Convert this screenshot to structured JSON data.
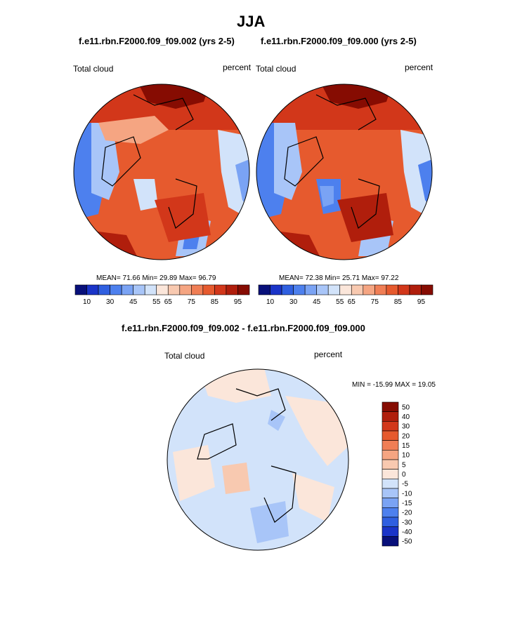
{
  "page": {
    "title": "JJA",
    "difference_title": "f.e11.rbn.F2000.f09_f09.002 - f.e11.rbn.F2000.f09_f09.000"
  },
  "panels": [
    {
      "title": "f.e11.rbn.F2000.f09_f09.002 (yrs 2-5)",
      "variable": "Total cloud",
      "units": "percent",
      "stats": "MEAN=  71.66  Min=  29.89  Max=  96.79",
      "mean": 71.66,
      "min": 29.89,
      "max": 96.79
    },
    {
      "title": "f.e11.rbn.F2000.f09_f09.000 (yrs 2-5)",
      "variable": "Total cloud",
      "units": "percent",
      "stats": "MEAN=  72.38  Min=  25.71  Max=  97.22",
      "mean": 72.38,
      "min": 25.71,
      "max": 97.22
    }
  ],
  "difference": {
    "variable": "Total cloud",
    "units": "percent",
    "stats": "MIN = -15.99 MAX =  19.05",
    "min": -15.99,
    "max": 19.05
  },
  "colorbar_abs": {
    "colors": [
      "#08107a",
      "#1a34c8",
      "#2f5fe0",
      "#4d80ee",
      "#7aa3f4",
      "#a8c5f8",
      "#d2e3fa",
      "#fbe6da",
      "#f8c9b0",
      "#f5a582",
      "#f07e55",
      "#e65a2e",
      "#d2371a",
      "#b01e0c",
      "#860c02"
    ],
    "tick_labels": [
      "10",
      "30",
      "45",
      "55",
      "65",
      "75",
      "85",
      "95"
    ]
  },
  "colorbar_diff": {
    "colors": [
      "#860c02",
      "#b01e0c",
      "#d2371a",
      "#e65a2e",
      "#f07e55",
      "#f5a582",
      "#f8c9b0",
      "#fbe6da",
      "#d2e3fa",
      "#a8c5f8",
      "#7aa3f4",
      "#4d80ee",
      "#2f5fe0",
      "#1a34c8",
      "#08107a"
    ],
    "tick_labels": [
      "50",
      "40",
      "30",
      "20",
      "15",
      "10",
      "5",
      "0",
      "-5",
      "-10",
      "-15",
      "-20",
      "-30",
      "-40",
      "-50"
    ]
  }
}
